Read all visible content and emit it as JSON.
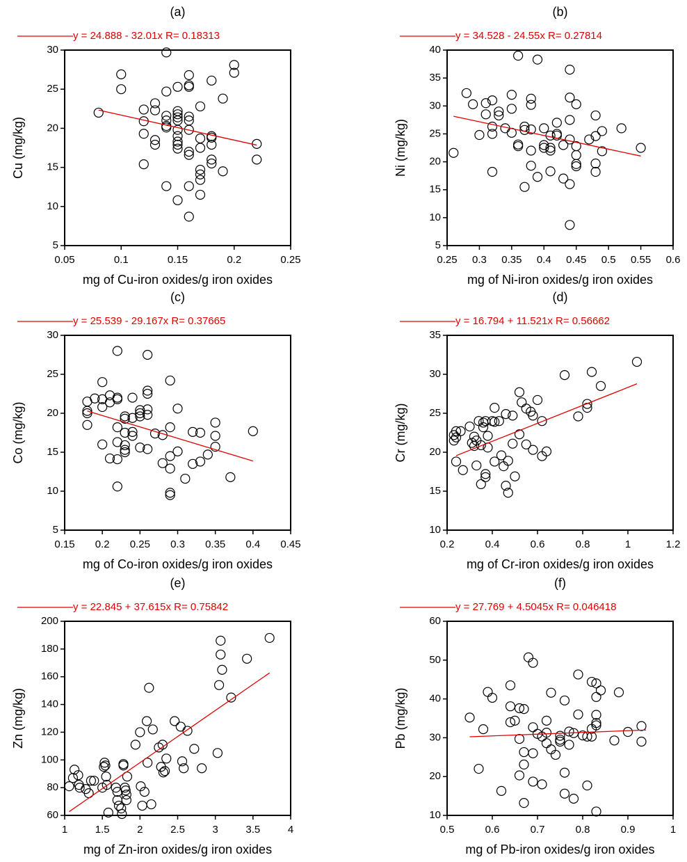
{
  "chart_data": [
    {
      "type": "scatter",
      "panel": "(a)",
      "x_label": "mg of Cu-iron oxides/g iron oxides",
      "y_label": "Cu (mg/kg)",
      "xlim": [
        0.05,
        0.25
      ],
      "xticks": [
        0.05,
        0.1,
        0.15,
        0.2,
        0.25
      ],
      "ylim": [
        5,
        30
      ],
      "yticks": [
        5,
        10,
        15,
        20,
        25,
        30
      ],
      "marker_color": "#000000",
      "points": {
        "x": [
          0.08,
          0.1,
          0.1,
          0.12,
          0.12,
          0.12,
          0.12,
          0.13,
          0.13,
          0.13,
          0.13,
          0.14,
          0.14,
          0.14,
          0.14,
          0.14,
          0.14,
          0.14,
          0.15,
          0.15,
          0.15,
          0.15,
          0.15,
          0.15,
          0.15,
          0.15,
          0.15,
          0.15,
          0.15,
          0.16,
          0.16,
          0.16,
          0.16,
          0.16,
          0.16,
          0.16,
          0.16,
          0.16,
          0.16,
          0.17,
          0.17,
          0.17,
          0.17,
          0.17,
          0.17,
          0.17,
          0.18,
          0.18,
          0.18,
          0.18,
          0.18,
          0.18,
          0.19,
          0.19,
          0.2,
          0.2,
          0.22,
          0.22
        ],
        "values": [
          22.0,
          26.9,
          25.0,
          22.4,
          20.9,
          19.3,
          15.4,
          23.2,
          22.3,
          18.5,
          17.9,
          29.7,
          24.7,
          21.6,
          21.0,
          20.3,
          20.1,
          12.6,
          25.3,
          22.2,
          21.8,
          21.4,
          21.0,
          19.8,
          19.0,
          18.3,
          17.9,
          17.4,
          10.8,
          26.8,
          25.5,
          25.3,
          21.5,
          21.0,
          19.8,
          17.0,
          16.6,
          12.6,
          8.7,
          22.8,
          18.7,
          17.5,
          14.7,
          14.1,
          13.4,
          11.5,
          26.1,
          19.0,
          18.8,
          17.9,
          16.0,
          15.5,
          23.8,
          14.5,
          28.1,
          27.1,
          18.0,
          16.0
        ]
      },
      "fit": {
        "name": "y = 24.888 - 32.01x R= 0.18313",
        "color": "#e00000",
        "x": [
          0.08,
          0.22
        ],
        "values": [
          22.33,
          17.85
        ]
      }
    },
    {
      "type": "scatter",
      "panel": "(b)",
      "x_label": "mg of Ni-iron oxides/g iron oxides",
      "y_label": "Ni (mg/kg)",
      "xlim": [
        0.25,
        0.6
      ],
      "xticks": [
        0.25,
        0.3,
        0.35,
        0.4,
        0.45,
        0.5,
        0.55,
        0.6
      ],
      "ylim": [
        5,
        40
      ],
      "yticks": [
        5,
        10,
        15,
        20,
        25,
        30,
        35,
        40
      ],
      "marker_color": "#000000",
      "points": {
        "x": [
          0.26,
          0.28,
          0.29,
          0.3,
          0.31,
          0.31,
          0.32,
          0.32,
          0.32,
          0.32,
          0.33,
          0.33,
          0.34,
          0.35,
          0.35,
          0.35,
          0.36,
          0.36,
          0.36,
          0.37,
          0.37,
          0.37,
          0.38,
          0.38,
          0.38,
          0.38,
          0.38,
          0.39,
          0.39,
          0.4,
          0.4,
          0.4,
          0.41,
          0.41,
          0.41,
          0.41,
          0.42,
          0.42,
          0.42,
          0.43,
          0.43,
          0.44,
          0.44,
          0.44,
          0.44,
          0.44,
          0.44,
          0.45,
          0.45,
          0.45,
          0.45,
          0.45,
          0.47,
          0.48,
          0.48,
          0.48,
          0.48,
          0.49,
          0.49,
          0.52,
          0.55
        ],
        "values": [
          21.6,
          32.3,
          30.3,
          24.8,
          30.5,
          28.5,
          31.0,
          26.3,
          25.0,
          18.2,
          29.0,
          28.3,
          26.0,
          32.0,
          29.5,
          25.2,
          39.0,
          23.1,
          22.8,
          26.3,
          25.7,
          15.5,
          31.3,
          30.2,
          25.8,
          22.0,
          19.3,
          38.3,
          17.3,
          26.0,
          23.0,
          22.5,
          24.7,
          22.5,
          22.0,
          18.3,
          27.0,
          25.0,
          24.7,
          23.0,
          17.0,
          36.5,
          31.5,
          27.5,
          24.0,
          16.0,
          8.7,
          30.3,
          22.8,
          21.2,
          19.6,
          19.2,
          24.0,
          28.3,
          24.6,
          19.7,
          18.2,
          25.5,
          21.9,
          26.0,
          22.5
        ]
      },
      "fit": {
        "name": "y = 34.528 - 24.55x R= 0.27814",
        "color": "#e00000",
        "x": [
          0.26,
          0.55
        ],
        "values": [
          28.15,
          21.03
        ]
      }
    },
    {
      "type": "scatter",
      "panel": "(c)",
      "x_label": "mg of Co-iron oxides/g iron oxides",
      "y_label": "Co (mg/kg)",
      "xlim": [
        0.15,
        0.45
      ],
      "xticks": [
        0.15,
        0.2,
        0.25,
        0.3,
        0.35,
        0.4,
        0.45
      ],
      "ylim": [
        5,
        30
      ],
      "yticks": [
        5,
        10,
        15,
        20,
        25,
        30
      ],
      "marker_color": "#000000",
      "points": {
        "x": [
          0.18,
          0.18,
          0.18,
          0.18,
          0.19,
          0.2,
          0.2,
          0.2,
          0.2,
          0.21,
          0.21,
          0.21,
          0.22,
          0.22,
          0.22,
          0.22,
          0.22,
          0.22,
          0.22,
          0.23,
          0.23,
          0.23,
          0.23,
          0.23,
          0.23,
          0.24,
          0.24,
          0.24,
          0.24,
          0.25,
          0.25,
          0.25,
          0.25,
          0.26,
          0.26,
          0.26,
          0.26,
          0.26,
          0.26,
          0.27,
          0.28,
          0.28,
          0.29,
          0.29,
          0.29,
          0.29,
          0.29,
          0.29,
          0.3,
          0.3,
          0.31,
          0.32,
          0.32,
          0.33,
          0.33,
          0.34,
          0.35,
          0.35,
          0.35,
          0.37,
          0.4
        ],
        "values": [
          21.5,
          20.3,
          20.0,
          18.5,
          21.9,
          24.0,
          21.8,
          20.8,
          16.0,
          22.3,
          21.4,
          14.2,
          28.0,
          22.0,
          21.8,
          18.2,
          16.3,
          14.1,
          10.6,
          19.6,
          19.3,
          17.5,
          15.9,
          15.3,
          15.0,
          22.0,
          19.4,
          17.6,
          17.1,
          20.4,
          20.0,
          19.6,
          15.6,
          27.5,
          22.9,
          22.5,
          20.5,
          19.8,
          15.4,
          17.4,
          17.2,
          13.6,
          24.2,
          18.2,
          14.5,
          12.9,
          9.8,
          9.5,
          20.6,
          15.1,
          11.6,
          17.6,
          13.5,
          17.5,
          13.8,
          14.7,
          18.8,
          17.1,
          15.7,
          11.8,
          17.7
        ]
      },
      "fit": {
        "name": "y = 25.539 - 29.167x R= 0.37665",
        "color": "#e00000",
        "x": [
          0.18,
          0.4
        ],
        "values": [
          20.29,
          13.87
        ]
      }
    },
    {
      "type": "scatter",
      "panel": "(d)",
      "x_label": "mg of Cr-iron oxides/g iron oxides",
      "y_label": "Cr (mg/kg)",
      "xlim": [
        0.2,
        1.2
      ],
      "xticks": [
        0.2,
        0.4,
        0.6,
        0.8,
        1,
        1.2
      ],
      "ylim": [
        10,
        35
      ],
      "yticks": [
        10,
        15,
        20,
        25,
        30,
        35
      ],
      "marker_color": "#000000",
      "points": {
        "x": [
          0.23,
          0.23,
          0.24,
          0.24,
          0.24,
          0.26,
          0.27,
          0.3,
          0.31,
          0.32,
          0.32,
          0.33,
          0.33,
          0.34,
          0.35,
          0.35,
          0.36,
          0.36,
          0.37,
          0.37,
          0.37,
          0.38,
          0.38,
          0.4,
          0.41,
          0.41,
          0.41,
          0.43,
          0.44,
          0.45,
          0.46,
          0.46,
          0.47,
          0.47,
          0.49,
          0.49,
          0.5,
          0.52,
          0.52,
          0.53,
          0.55,
          0.55,
          0.57,
          0.58,
          0.58,
          0.6,
          0.62,
          0.62,
          0.64,
          0.72,
          0.78,
          0.82,
          0.82,
          0.84,
          0.88,
          1.04
        ],
        "values": [
          21.5,
          22.2,
          22.7,
          21.9,
          18.8,
          22.7,
          17.7,
          23.3,
          21.2,
          22.0,
          20.8,
          18.3,
          21.5,
          24.0,
          20.9,
          15.9,
          23.8,
          23.2,
          24.0,
          17.2,
          16.8,
          22.1,
          20.6,
          24.0,
          23.9,
          25.7,
          18.8,
          24.0,
          19.6,
          18.2,
          24.9,
          15.7,
          18.9,
          14.8,
          24.7,
          21.1,
          16.9,
          27.7,
          22.3,
          26.4,
          25.6,
          21.0,
          25.2,
          24.7,
          20.3,
          26.7,
          24.0,
          19.5,
          20.1,
          29.9,
          24.6,
          26.2,
          25.7,
          30.3,
          28.5,
          31.6
        ]
      },
      "fit": {
        "name": "y = 16.794 + 11.521x R= 0.56662",
        "color": "#e00000",
        "x": [
          0.24,
          1.04
        ],
        "values": [
          19.56,
          28.78
        ]
      }
    },
    {
      "type": "scatter",
      "panel": "(e)",
      "x_label": "mg of Zn-iron oxides/g iron oxides",
      "y_label": "Zn (mg/kg)",
      "xlim": [
        1,
        4
      ],
      "xticks": [
        1,
        1.5,
        2,
        2.5,
        3,
        3.5,
        4
      ],
      "ylim": [
        60,
        200
      ],
      "yticks": [
        60,
        80,
        100,
        120,
        140,
        160,
        180,
        200
      ],
      "marker_color": "#000000",
      "points": {
        "x": [
          1.06,
          1.11,
          1.13,
          1.18,
          1.19,
          1.2,
          1.28,
          1.32,
          1.35,
          1.39,
          1.5,
          1.52,
          1.53,
          1.54,
          1.55,
          1.56,
          1.58,
          1.68,
          1.7,
          1.7,
          1.72,
          1.75,
          1.76,
          1.78,
          1.78,
          1.8,
          1.81,
          1.82,
          1.82,
          1.83,
          1.94,
          2.0,
          2.01,
          2.03,
          2.06,
          2.09,
          2.1,
          2.12,
          2.15,
          2.17,
          2.25,
          2.28,
          2.3,
          2.31,
          2.33,
          2.35,
          2.46,
          2.54,
          2.56,
          2.58,
          2.63,
          2.72,
          2.82,
          3.03,
          3.05,
          3.07,
          3.07,
          3.09,
          3.21,
          3.42,
          3.72
        ],
        "values": [
          81,
          87,
          93,
          89,
          82,
          80,
          79,
          76,
          85,
          85,
          80,
          95,
          98,
          96,
          88,
          82,
          62,
          80,
          77,
          71,
          67,
          65,
          61,
          97,
          96,
          80,
          78,
          75,
          71,
          88,
          111,
          120,
          81,
          67,
          77,
          128,
          98,
          152,
          68,
          122,
          109,
          95,
          111,
          91,
          92,
          101,
          128,
          124,
          99,
          94,
          121,
          108,
          94,
          105,
          154,
          186,
          176,
          165,
          145,
          173,
          188
        ]
      },
      "fit": {
        "name": "y = 22.845 + 37.615x R= 0.75842",
        "color": "#e00000",
        "x": [
          1.06,
          3.72
        ],
        "values": [
          62.72,
          162.77
        ]
      }
    },
    {
      "type": "scatter",
      "panel": "(f)",
      "x_label": "mg of Pb-iron oxides/g iron oxides",
      "y_label": "Pb (mg/kg)",
      "xlim": [
        0.5,
        1
      ],
      "xticks": [
        0.5,
        0.6,
        0.7,
        0.8,
        0.9,
        1
      ],
      "ylim": [
        10,
        60
      ],
      "yticks": [
        10,
        20,
        30,
        40,
        50,
        60
      ],
      "marker_color": "#000000",
      "points": {
        "x": [
          0.55,
          0.57,
          0.58,
          0.59,
          0.6,
          0.62,
          0.64,
          0.64,
          0.64,
          0.65,
          0.66,
          0.66,
          0.66,
          0.67,
          0.67,
          0.67,
          0.67,
          0.68,
          0.69,
          0.69,
          0.69,
          0.69,
          0.7,
          0.71,
          0.71,
          0.72,
          0.72,
          0.72,
          0.73,
          0.73,
          0.74,
          0.75,
          0.75,
          0.75,
          0.76,
          0.76,
          0.76,
          0.77,
          0.77,
          0.78,
          0.78,
          0.79,
          0.79,
          0.8,
          0.81,
          0.81,
          0.82,
          0.82,
          0.82,
          0.83,
          0.83,
          0.83,
          0.83,
          0.83,
          0.83,
          0.84,
          0.87,
          0.88,
          0.9,
          0.93,
          0.93
        ],
        "values": [
          35.2,
          22.0,
          32.2,
          41.8,
          40.3,
          16.3,
          43.5,
          38.1,
          34.0,
          34.4,
          37.6,
          29.7,
          20.3,
          37.4,
          26.3,
          23.1,
          13.2,
          50.7,
          49.3,
          32.7,
          26.0,
          18.7,
          31.0,
          30.3,
          18.0,
          34.4,
          31.3,
          28.6,
          41.6,
          27.0,
          25.6,
          30.5,
          29.5,
          29.0,
          39.6,
          21.0,
          15.6,
          31.6,
          28.2,
          31.2,
          14.3,
          46.3,
          36.0,
          30.6,
          30.3,
          17.7,
          44.4,
          32.3,
          30.3,
          44.0,
          40.5,
          35.9,
          33.8,
          33.2,
          11.0,
          42.2,
          29.3,
          41.7,
          31.5,
          33.0,
          29.0
        ]
      },
      "fit": {
        "name": "y = 27.769 + 4.5045x R= 0.046418",
        "color": "#e00000",
        "x": [
          0.55,
          0.94
        ],
        "values": [
          30.25,
          32.0
        ]
      }
    }
  ]
}
